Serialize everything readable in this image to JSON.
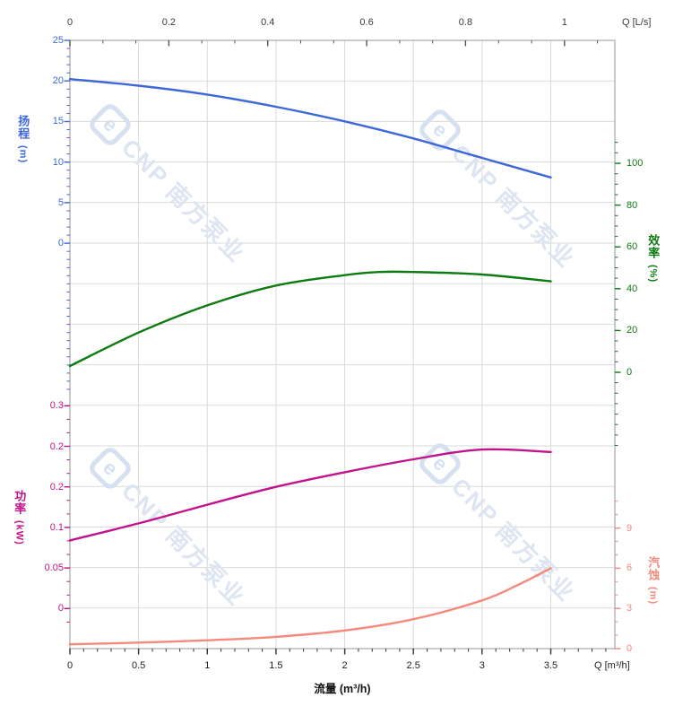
{
  "watermark": {
    "logo_letter": "e",
    "text": "CNP 南方泵业"
  },
  "top_axis": {
    "unit_label": "Q [L/s]",
    "ticks": [
      "0",
      "0.2",
      "0.4",
      "0.6",
      "0.8",
      "1"
    ],
    "color": "#3a3a3a"
  },
  "bottom_axis": {
    "title": "流量 (m³/h)",
    "unit_label": "Q [m³/h]",
    "ticks": [
      "0",
      "0.5",
      "1",
      "1.5",
      "2",
      "2.5",
      "3",
      "3.5"
    ],
    "color": "#222222"
  },
  "head_axis": {
    "title": "扬程",
    "unit": "(m)",
    "ticks": [
      "25",
      "20",
      "15",
      "10",
      "5",
      "0"
    ],
    "color": "#3e68d8"
  },
  "eff_axis": {
    "title": "效率",
    "unit": "(%)",
    "ticks": [
      "100",
      "80",
      "60",
      "40",
      "20",
      "0"
    ],
    "color": "#0e7b12"
  },
  "power_axis": {
    "title": "功率",
    "unit": "(kW)",
    "ticks": [
      "0.3",
      "0.2",
      "0.2",
      "0.1",
      "0.05",
      "0"
    ],
    "color": "#c3138b"
  },
  "npsh_axis": {
    "title": "汽蚀",
    "unit": "(m)",
    "ticks": [
      "9",
      "6",
      "3",
      "0"
    ],
    "color": "#f58a7c"
  },
  "chart_data": {
    "type": "line",
    "xlabel": "流量 (m³/h)",
    "x_axis_bottom": {
      "unit": "m³/h",
      "range": [
        0,
        3.96
      ],
      "tick_values": [
        0,
        0.5,
        1,
        1.5,
        2,
        2.5,
        3,
        3.5
      ]
    },
    "x_axis_top": {
      "unit": "L/s",
      "range": [
        0,
        1.1
      ],
      "tick_values": [
        0,
        0.2,
        0.4,
        0.6,
        0.8,
        1
      ]
    },
    "grid": true,
    "series": [
      {
        "id": "head",
        "name": "扬程",
        "unit": "m",
        "color": "#3e68d8",
        "axis_ticks": [
          25,
          20,
          15,
          10,
          5,
          0
        ],
        "x": [
          0,
          0.5,
          1,
          1.5,
          2,
          2.5,
          3,
          3.5
        ],
        "y": [
          20.2,
          19.4,
          18.3,
          16.8,
          15.0,
          12.9,
          10.5,
          8.1
        ]
      },
      {
        "id": "efficiency",
        "name": "效率",
        "unit": "%",
        "color": "#0e7b12",
        "axis_ticks": [
          100,
          80,
          60,
          40,
          20,
          0
        ],
        "x": [
          0,
          0.5,
          1,
          1.5,
          2,
          2.25,
          2.5,
          3,
          3.5
        ],
        "y": [
          3,
          19,
          32,
          41.5,
          46.5,
          48,
          48,
          46.8,
          43.5
        ]
      },
      {
        "id": "power",
        "name": "功率",
        "unit": "kW",
        "color": "#c3138b",
        "axis_ticks": [
          0.3,
          0.2,
          0.2,
          0.1,
          0.05,
          0
        ],
        "x": [
          0,
          0.5,
          1,
          1.5,
          2,
          2.5,
          3,
          3.5
        ],
        "y": [
          0.084,
          0.105,
          0.128,
          0.15,
          0.168,
          0.184,
          0.196,
          0.193
        ]
      },
      {
        "id": "npsh",
        "name": "汽蚀",
        "unit": "m",
        "color": "#f58a7c",
        "axis_ticks": [
          9,
          6,
          3,
          0
        ],
        "x": [
          0,
          0.5,
          1,
          1.5,
          2,
          2.5,
          3,
          3.25,
          3.5
        ],
        "y": [
          0.32,
          0.45,
          0.62,
          0.88,
          1.35,
          2.2,
          3.6,
          4.7,
          6.0
        ]
      }
    ]
  }
}
